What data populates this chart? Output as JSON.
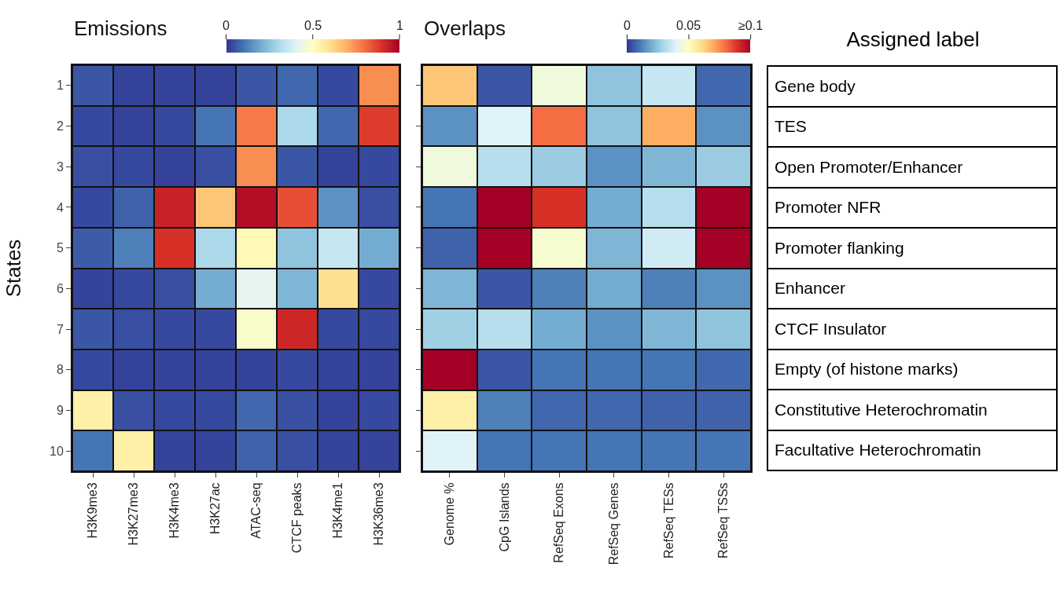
{
  "chart_data": [
    {
      "type": "heatmap",
      "title": "Emissions",
      "ylabel": "States",
      "categories": [
        "H3K9me3",
        "H3K27me3",
        "H3K4me3",
        "H3K27ac",
        "ATAC-seq",
        "CTCF peaks",
        "H3K4me1",
        "H3K36me3"
      ],
      "y_categories": [
        "1",
        "2",
        "3",
        "4",
        "5",
        "6",
        "7",
        "8",
        "9",
        "10"
      ],
      "cells": [
        [
          0.05,
          0.02,
          0.02,
          0.02,
          0.05,
          0.08,
          0.03,
          0.75
        ],
        [
          0.03,
          0.02,
          0.03,
          0.1,
          0.78,
          0.3,
          0.08,
          0.88
        ],
        [
          0.04,
          0.03,
          0.02,
          0.04,
          0.75,
          0.05,
          0.02,
          0.03
        ],
        [
          0.03,
          0.07,
          0.93,
          0.65,
          0.97,
          0.85,
          0.15,
          0.04
        ],
        [
          0.06,
          0.12,
          0.9,
          0.3,
          0.52,
          0.25,
          0.35,
          0.2
        ],
        [
          0.02,
          0.03,
          0.04,
          0.2,
          0.42,
          0.22,
          0.6,
          0.03
        ],
        [
          0.05,
          0.04,
          0.03,
          0.03,
          0.48,
          0.92,
          0.03,
          0.03
        ],
        [
          0.03,
          0.02,
          0.02,
          0.02,
          0.02,
          0.03,
          0.02,
          0.02
        ],
        [
          0.55,
          0.04,
          0.03,
          0.03,
          0.08,
          0.04,
          0.02,
          0.03
        ],
        [
          0.1,
          0.55,
          0.02,
          0.02,
          0.07,
          0.04,
          0.02,
          0.02
        ]
      ],
      "clim": [
        0,
        1
      ],
      "cticks": [
        0,
        0.5,
        1
      ]
    },
    {
      "type": "heatmap",
      "title": "Overlaps",
      "categories": [
        "Genome %",
        "CpG Islands",
        "RefSeq Exons",
        "RefSeq Genes",
        "RefSeq TESs",
        "RefSeq TSSs"
      ],
      "y_categories": [
        "1",
        "2",
        "3",
        "4",
        "5",
        "6",
        "7",
        "8",
        "9",
        "10"
      ],
      "tick_labels": "x",
      "cells": [
        [
          0.065,
          0.005,
          0.045,
          0.025,
          0.035,
          0.008
        ],
        [
          0.015,
          0.04,
          0.08,
          0.025,
          0.07,
          0.015
        ],
        [
          0.045,
          0.032,
          0.027,
          0.015,
          0.022,
          0.027
        ],
        [
          0.01,
          0.1,
          0.09,
          0.02,
          0.032,
          0.1
        ],
        [
          0.007,
          0.1,
          0.047,
          0.022,
          0.037,
          0.1
        ],
        [
          0.022,
          0.005,
          0.012,
          0.02,
          0.012,
          0.015
        ],
        [
          0.028,
          0.032,
          0.02,
          0.015,
          0.022,
          0.025
        ],
        [
          0.1,
          0.005,
          0.01,
          0.01,
          0.01,
          0.008
        ],
        [
          0.055,
          0.012,
          0.008,
          0.008,
          0.007,
          0.007
        ],
        [
          0.04,
          0.01,
          0.01,
          0.01,
          0.01,
          0.01
        ]
      ],
      "clim": [
        0,
        0.1
      ],
      "cticks": [
        0,
        0.05,
        {
          "value": 0.1,
          "label": "≥0.1"
        }
      ]
    },
    {
      "type": "other",
      "title": "Assigned label",
      "categories": [
        "Gene body",
        "TES",
        "Open Promoter/Enhancer",
        "Promoter NFR",
        "Promoter flanking",
        "Enhancer",
        "CTCF Insulator",
        "Empty (of histone marks)",
        "Constitutive Heterochromatin",
        "Facultative Heterochromatin"
      ]
    }
  ]
}
